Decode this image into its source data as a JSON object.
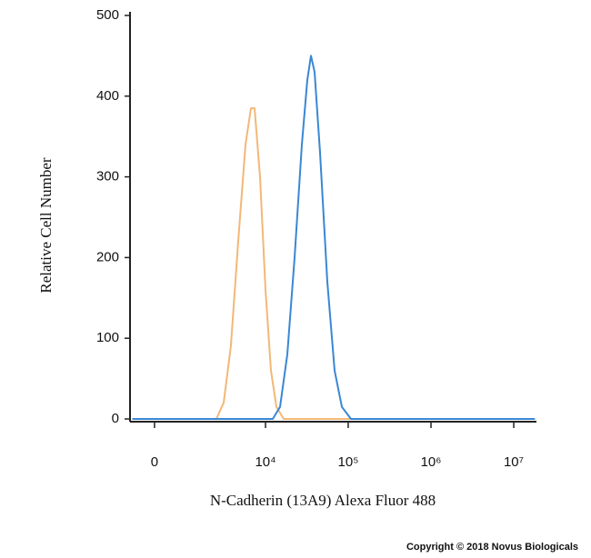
{
  "chart_data": {
    "type": "line",
    "x_label": "N-Cadherin (13A9) Alexa Fluor 488",
    "y_label": "Relative Cell Number",
    "footer": "Copyright © 2018 Novus Biologicals",
    "xscale": "asinh",
    "asinh_cofactor": 914,
    "xlim": [
      -672,
      18800000
    ],
    "xticks": [
      0,
      {
        "value": 10000,
        "label": "10⁴"
      },
      {
        "value": 100000,
        "label": "10⁵"
      },
      {
        "value": 1000000,
        "label": "10⁶"
      },
      {
        "value": 10000000,
        "label": "10⁷"
      }
    ],
    "ylim": [
      0,
      500
    ],
    "yticks": [
      0,
      100,
      200,
      300,
      400,
      500
    ],
    "series": [
      {
        "color": "#f2b877",
        "x": [
          -600,
          2470,
          3060,
          3770,
          4640,
          5700,
          6650,
          7370,
          8580,
          9990,
          11630,
          13540,
          16590,
          18000000
        ],
        "values": [
          0,
          0,
          20,
          90,
          220,
          340,
          385,
          385,
          300,
          160,
          60,
          15,
          0,
          0
        ]
      },
      {
        "color": "#3a87d4",
        "x": [
          -600,
          12240,
          14990,
          18360,
          22480,
          27550,
          32040,
          35470,
          39250,
          45690,
          55940,
          68460,
          83810,
          107940,
          18000000
        ],
        "values": [
          0,
          0,
          15,
          80,
          200,
          340,
          420,
          450,
          430,
          330,
          170,
          60,
          15,
          0,
          0
        ]
      }
    ]
  }
}
